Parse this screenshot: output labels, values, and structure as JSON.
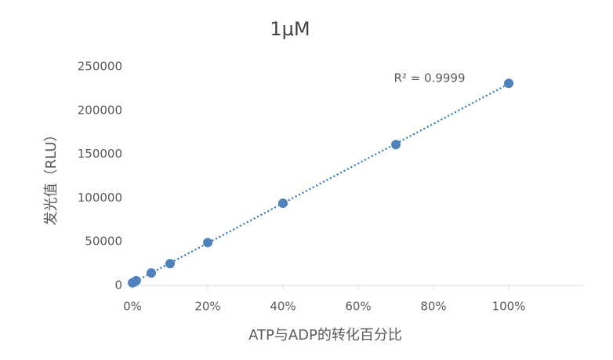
{
  "chart_data": {
    "type": "scatter",
    "title": "1μM",
    "x_label": "ATP与ADP的转化百分比",
    "y_label": "发光值（RLU）",
    "annotation": "R² = 0.9999",
    "series": [
      {
        "name": "1μM",
        "color": "#4f81bd",
        "x": [
          0,
          0.5,
          1,
          5,
          10,
          20,
          40,
          70,
          100
        ],
        "values": [
          3000,
          4000,
          5500,
          14300,
          25000,
          49000,
          94000,
          161000,
          231000
        ]
      }
    ],
    "trendline": "linear",
    "trendline_color": "#2e75b6",
    "xlim": [
      0,
      120
    ],
    "xticks": [
      {
        "value": 0,
        "label": "0%"
      },
      {
        "value": 20,
        "label": "20%"
      },
      {
        "value": 40,
        "label": "40%"
      },
      {
        "value": 60,
        "label": "60%"
      },
      {
        "value": 80,
        "label": "80%"
      },
      {
        "value": 100,
        "label": "100%"
      }
    ],
    "ylim": [
      0,
      250000
    ],
    "yticks": [
      0,
      50000,
      100000,
      150000,
      200000,
      250000
    ],
    "grid": false
  }
}
